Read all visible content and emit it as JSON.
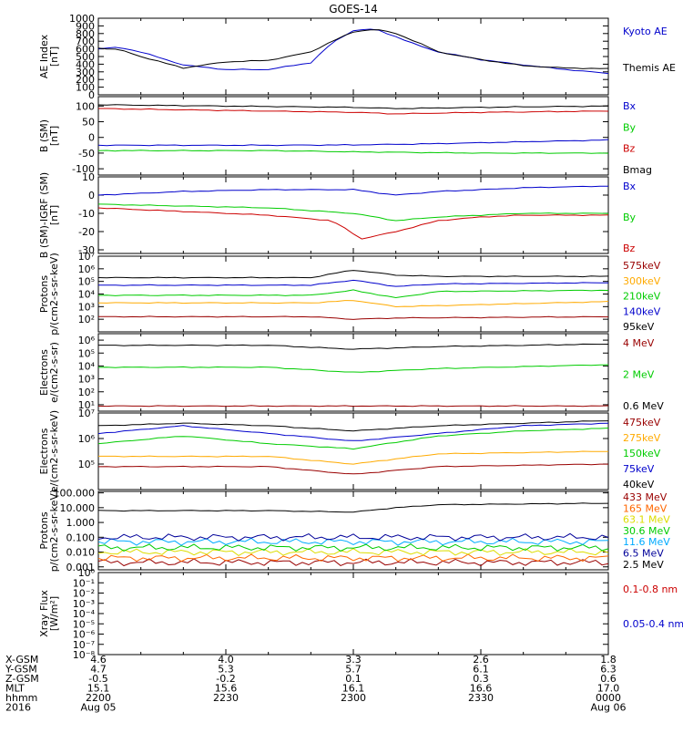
{
  "chart_data": {
    "type": "line",
    "title": "GOES-14",
    "x_range": [
      "2016-08-05 22:00",
      "2016-08-06 00:00"
    ],
    "panels": [
      {
        "id": "ae",
        "ylabel": [
          "AE Index",
          "[nT]"
        ],
        "scale": "linear",
        "ylim": [
          0,
          1000
        ],
        "ticks": [
          0,
          100,
          200,
          300,
          400,
          500,
          600,
          700,
          800,
          900,
          1000
        ],
        "tick_labels": [
          "0",
          "100",
          "200",
          "300",
          "400",
          "500",
          "600",
          "700",
          "800",
          "900",
          "1000"
        ],
        "series": [
          {
            "name": "Kyoto AE",
            "color": "#0000cc",
            "t": [
              0,
              5,
              10,
              20,
              30,
              40,
              50,
              55,
              60,
              65,
              70,
              75,
              80,
              90,
              100,
              110,
              120
            ],
            "values": [
              600,
              620,
              560,
              390,
              330,
              330,
              420,
              680,
              840,
              860,
              760,
              650,
              560,
              460,
              390,
              330,
              280
            ]
          },
          {
            "name": "Themis AE",
            "color": "#000000",
            "t": [
              0,
              5,
              10,
              20,
              30,
              40,
              50,
              55,
              60,
              65,
              70,
              75,
              80,
              90,
              100,
              110,
              120
            ],
            "values": [
              610,
              590,
              500,
              350,
              430,
              450,
              560,
              700,
              820,
              860,
              800,
              690,
              560,
              460,
              380,
              350,
              340
            ]
          }
        ]
      },
      {
        "id": "bsm",
        "ylabel": [
          "B (SM)",
          "[nT]"
        ],
        "scale": "linear",
        "ylim": [
          -120,
          130
        ],
        "ticks": [
          -100,
          -50,
          0,
          50,
          100
        ],
        "tick_labels": [
          "-100",
          "-50",
          "0",
          "50",
          "100"
        ],
        "series": [
          {
            "name": "Bx",
            "color": "#0000cc",
            "t": [
              0,
              40,
              60,
              80,
              120
            ],
            "values": [
              -25,
              -25,
              -24,
              -20,
              -8
            ]
          },
          {
            "name": "By",
            "color": "#00cc00",
            "t": [
              0,
              40,
              60,
              90,
              120
            ],
            "values": [
              -42,
              -42,
              -46,
              -50,
              -50
            ]
          },
          {
            "name": "Bz",
            "color": "#cc0000",
            "t": [
              0,
              30,
              60,
              70,
              90,
              120
            ],
            "values": [
              92,
              86,
              80,
              75,
              80,
              84
            ]
          },
          {
            "name": "Bmag",
            "color": "#000000",
            "t": [
              0,
              30,
              60,
              70,
              90,
              120
            ],
            "values": [
              104,
              100,
              96,
              92,
              96,
              100
            ]
          }
        ]
      },
      {
        "id": "bsmigrf",
        "ylabel": [
          "B (SM)-IGRF (SM)",
          "[nT]"
        ],
        "scale": "linear",
        "ylim": [
          -32,
          10
        ],
        "ticks": [
          -30,
          -20,
          -10,
          0,
          10
        ],
        "tick_labels": [
          "-30",
          "-20",
          "-10",
          "0",
          "10"
        ],
        "series": [
          {
            "name": "Bx",
            "color": "#0000cc",
            "t": [
              0,
              20,
              40,
              60,
              70,
              80,
              100,
              120
            ],
            "values": [
              0,
              2,
              3,
              3,
              0,
              2,
              4,
              5
            ]
          },
          {
            "name": "By",
            "color": "#00cc00",
            "t": [
              0,
              20,
              40,
              60,
              70,
              80,
              100,
              120
            ],
            "values": [
              -5,
              -6,
              -7,
              -10,
              -14,
              -12,
              -10,
              -10
            ]
          },
          {
            "name": "Bz",
            "color": "#cc0000",
            "t": [
              0,
              20,
              40,
              55,
              62,
              70,
              80,
              90,
              100,
              120
            ],
            "values": [
              -7,
              -9,
              -11,
              -14,
              -24,
              -20,
              -14,
              -12,
              -11,
              -11
            ]
          }
        ]
      },
      {
        "id": "protons_kev",
        "ylabel": [
          "Protons",
          "p/(cm2-s-sr-keV)"
        ],
        "scale": "log",
        "ylim": [
          1,
          7
        ],
        "ticks": [
          2,
          3,
          4,
          5,
          6,
          7
        ],
        "tick_labels": [
          "10²",
          "10³",
          "10⁴",
          "10⁵",
          "10⁶",
          "10⁷"
        ],
        "series": [
          {
            "name": "575keV",
            "color": "#990000",
            "t": [
              0,
              50,
              60,
              70,
              120
            ],
            "values": [
              2.2,
              2.2,
              2.0,
              2.1,
              2.2
            ]
          },
          {
            "name": "300keV",
            "color": "#ffaa00",
            "t": [
              0,
              50,
              60,
              70,
              120
            ],
            "values": [
              3.3,
              3.3,
              3.5,
              3.0,
              3.4
            ]
          },
          {
            "name": "210keV",
            "color": "#00cc00",
            "t": [
              0,
              50,
              60,
              70,
              80,
              120
            ],
            "values": [
              3.9,
              3.9,
              4.3,
              3.7,
              4.2,
              4.3
            ]
          },
          {
            "name": "140keV",
            "color": "#0000cc",
            "t": [
              0,
              50,
              60,
              70,
              80,
              120
            ],
            "values": [
              4.7,
              4.7,
              5.1,
              4.6,
              4.8,
              4.9
            ]
          },
          {
            "name": "95keV",
            "color": "#000000",
            "t": [
              0,
              50,
              60,
              70,
              80,
              120
            ],
            "values": [
              5.3,
              5.3,
              5.9,
              5.5,
              5.4,
              5.4
            ]
          }
        ]
      },
      {
        "id": "electrons_mev",
        "ylabel": [
          "Electrons",
          "e/(cm2-s-sr)"
        ],
        "scale": "log",
        "ylim": [
          0.5,
          6.5
        ],
        "ticks": [
          1,
          2,
          3,
          4,
          5,
          6
        ],
        "tick_labels": [
          "10¹",
          "10²",
          "10³",
          "10⁴",
          "10⁵",
          "10⁶"
        ],
        "series": [
          {
            "name": "4 MeV",
            "color": "#990000",
            "t": [
              0,
              60,
              120
            ],
            "values": [
              0.9,
              0.9,
              0.9
            ]
          },
          {
            "name": "2 MeV",
            "color": "#00cc00",
            "t": [
              0,
              40,
              60,
              80,
              120
            ],
            "values": [
              3.9,
              3.9,
              3.5,
              3.8,
              4.1
            ]
          },
          {
            "name": "0.6 MeV",
            "color": "#000000",
            "t": [
              0,
              40,
              60,
              80,
              120
            ],
            "values": [
              5.6,
              5.6,
              5.3,
              5.5,
              5.7
            ]
          }
        ]
      },
      {
        "id": "electrons_kev",
        "ylabel": [
          "Electrons",
          "e/(cm2-s-sr-keV)"
        ],
        "scale": "log",
        "ylim": [
          4,
          7
        ],
        "ticks": [
          5,
          6,
          7
        ],
        "tick_labels": [
          "10⁵",
          "10⁶",
          "10⁷"
        ],
        "series": [
          {
            "name": "475keV",
            "color": "#990000",
            "t": [
              0,
              40,
              60,
              80,
              120
            ],
            "values": [
              4.9,
              4.9,
              4.6,
              4.9,
              5.0
            ]
          },
          {
            "name": "275keV",
            "color": "#ffaa00",
            "t": [
              0,
              40,
              60,
              80,
              120
            ],
            "values": [
              5.3,
              5.3,
              5.0,
              5.4,
              5.5
            ]
          },
          {
            "name": "150keV",
            "color": "#00cc00",
            "t": [
              0,
              20,
              40,
              60,
              80,
              100,
              120
            ],
            "values": [
              5.8,
              6.1,
              5.8,
              5.6,
              6.1,
              6.3,
              6.4
            ]
          },
          {
            "name": "75keV",
            "color": "#0000cc",
            "t": [
              0,
              20,
              40,
              60,
              80,
              100,
              120
            ],
            "values": [
              6.2,
              6.5,
              6.2,
              5.9,
              6.2,
              6.5,
              6.6
            ]
          },
          {
            "name": "40keV",
            "color": "#000000",
            "t": [
              0,
              20,
              40,
              60,
              80,
              100,
              120
            ],
            "values": [
              6.5,
              6.6,
              6.5,
              6.3,
              6.5,
              6.6,
              6.7
            ]
          }
        ]
      },
      {
        "id": "protons_mev",
        "ylabel": [
          "Protons",
          "p/(cm2-s-sr-keV)"
        ],
        "scale": "log",
        "ylim": [
          -3.2,
          2.1
        ],
        "ticks": [
          -3,
          -2,
          -1,
          0,
          1,
          2
        ],
        "tick_labels": [
          "0.001",
          "0.010",
          "0.100",
          "1.000",
          "10.000",
          "100.000"
        ],
        "series": [
          {
            "name": "433 MeV",
            "color": "#990000",
            "t": [
              0,
              120
            ],
            "values": [
              -2.7,
              -2.7
            ]
          },
          {
            "name": "165 MeV",
            "color": "#ff6600",
            "t": [
              0,
              120
            ],
            "values": [
              -2.4,
              -2.4
            ]
          },
          {
            "name": "63.1 MeV",
            "color": "#dddd00",
            "t": [
              0,
              120
            ],
            "values": [
              -2.0,
              -2.0
            ]
          },
          {
            "name": "30.6 MeV",
            "color": "#00cc00",
            "t": [
              0,
              120
            ],
            "values": [
              -1.7,
              -1.7
            ]
          },
          {
            "name": "11.6 MeV",
            "color": "#00aaff",
            "t": [
              0,
              120
            ],
            "values": [
              -1.3,
              -1.3
            ]
          },
          {
            "name": "6.5 MeV",
            "color": "#000099",
            "t": [
              0,
              120
            ],
            "values": [
              -1.0,
              -1.0
            ]
          },
          {
            "name": "2.5 MeV",
            "color": "#000000",
            "t": [
              0,
              40,
              60,
              70,
              80,
              120
            ],
            "values": [
              0.8,
              0.8,
              0.7,
              1.0,
              1.2,
              1.3
            ]
          }
        ]
      },
      {
        "id": "xray",
        "ylabel": [
          "Xray Flux",
          "[W/m²]"
        ],
        "scale": "log",
        "ylim": [
          -8,
          0
        ],
        "ticks": [
          -8,
          -7,
          -6,
          -5,
          -4,
          -3,
          -2,
          -1,
          0
        ],
        "tick_labels": [
          "10⁻⁸",
          "10⁻⁷",
          "10⁻⁶",
          "10⁻⁵",
          "10⁻⁴",
          "10⁻³",
          "10⁻²",
          "10⁻¹",
          "10⁰"
        ],
        "series": [
          {
            "name": "0.1-0.8 nm",
            "color": "#cc0000",
            "t": [],
            "values": []
          },
          {
            "name": "0.05-0.4 nm",
            "color": "#0000cc",
            "t": [],
            "values": []
          }
        ]
      }
    ],
    "ephemeris": {
      "rows": [
        {
          "label": "X-GSM",
          "values": [
            "4.6",
            "4.0",
            "3.3",
            "2.6",
            "1.8"
          ]
        },
        {
          "label": "Y-GSM",
          "values": [
            "4.7",
            "5.3",
            "5.7",
            "6.1",
            "6.3"
          ]
        },
        {
          "label": "Z-GSM",
          "values": [
            "-0.5",
            "-0.2",
            "0.1",
            "0.3",
            "0.6"
          ]
        },
        {
          "label": "MLT",
          "values": [
            "15.1",
            "15.6",
            "16.1",
            "16.6",
            "17.0"
          ]
        },
        {
          "label": "hhmm",
          "values": [
            "2200",
            "2230",
            "2300",
            "2330",
            "0000"
          ]
        },
        {
          "label": "2016",
          "values": [
            "Aug 05",
            "",
            "",
            "",
            "Aug 06"
          ]
        }
      ]
    }
  }
}
